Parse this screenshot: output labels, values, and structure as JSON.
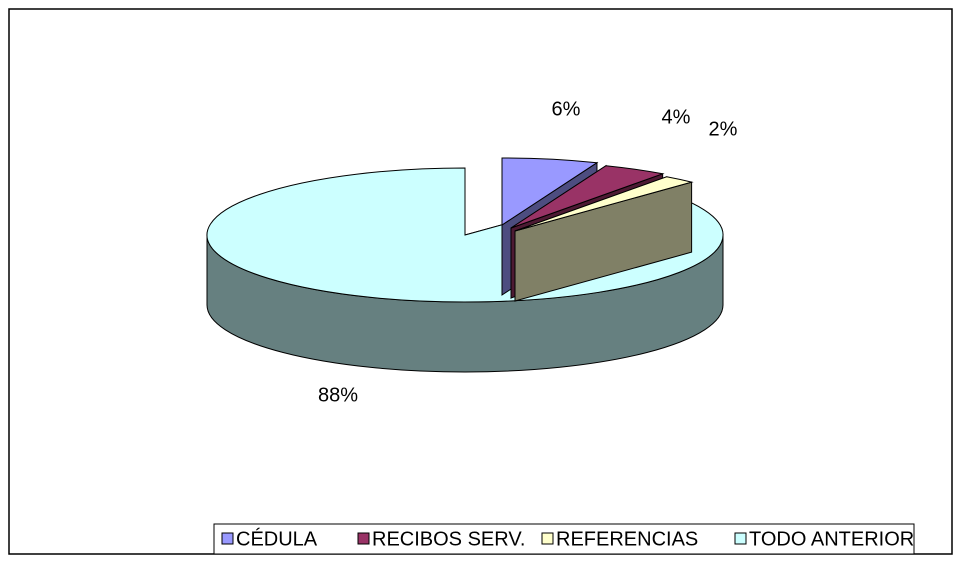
{
  "chart_data": {
    "type": "pie3d",
    "categories": [
      "CÉDULA",
      "RECIBOS SERV.",
      "REFERENCIAS",
      "TODO ANTERIOR"
    ],
    "values": [
      6,
      4,
      2,
      88
    ],
    "value_labels": [
      "6%",
      "4%",
      "2%",
      "88%"
    ],
    "colors": [
      "#9999ff",
      "#993366",
      "#ffffcc",
      "#ccffff"
    ],
    "legend": "bottom"
  }
}
